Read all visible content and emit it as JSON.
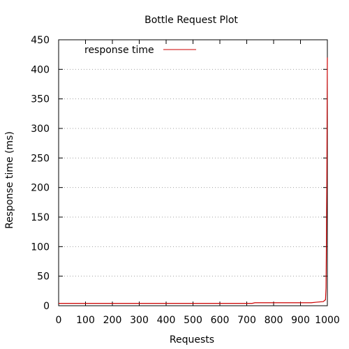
{
  "chart_data": {
    "type": "line",
    "title": "Bottle Request Plot",
    "xlabel": "Requests",
    "ylabel": "Response time (ms)",
    "xlim": [
      0,
      1000
    ],
    "ylim": [
      0,
      450
    ],
    "xticks": [
      0,
      100,
      200,
      300,
      400,
      500,
      600,
      700,
      800,
      900,
      1000
    ],
    "yticks": [
      0,
      50,
      100,
      150,
      200,
      250,
      300,
      350,
      400,
      450
    ],
    "grid": "horizontal dotted",
    "legend_position": "top-left",
    "series": [
      {
        "name": "response time",
        "color": "#cc0000",
        "x": [
          0,
          100,
          200,
          300,
          400,
          500,
          600,
          700,
          720,
          730,
          800,
          900,
          940,
          960,
          985,
          990,
          993,
          995,
          996,
          997,
          998,
          999,
          1000
        ],
        "y": [
          4,
          4,
          4,
          4,
          4,
          4,
          4,
          4,
          4,
          5,
          5,
          5,
          5,
          6,
          7,
          9,
          10,
          30,
          80,
          150,
          210,
          320,
          420
        ]
      }
    ]
  }
}
